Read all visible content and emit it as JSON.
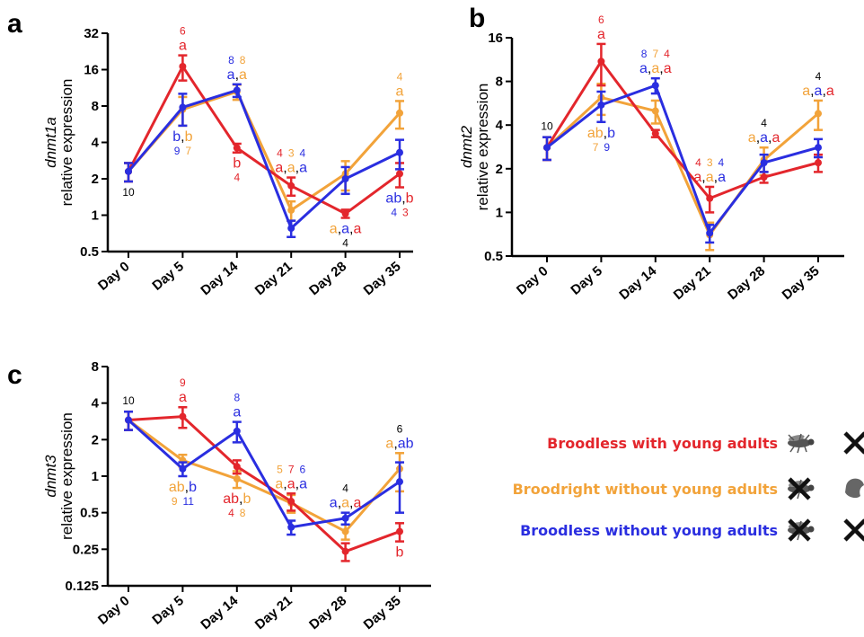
{
  "colors": {
    "red": "#e3262c",
    "orange": "#f2a33a",
    "blue": "#2a2ee0",
    "black": "#000000"
  },
  "legend": {
    "items": [
      {
        "label": "Broodless with young adults",
        "color": "#e3262c",
        "icons": [
          "fly-icon",
          "cross-icon"
        ]
      },
      {
        "label": "Broodright without young adults",
        "color": "#f2a33a",
        "icons": [
          "crossed-fly-icon",
          "pupa-icon"
        ]
      },
      {
        "label": "Broodless without young adults",
        "color": "#2a2ee0",
        "icons": [
          "crossed-fly-icon",
          "cross-icon"
        ]
      }
    ]
  },
  "chart_data": [
    {
      "panel": "a",
      "type": "line",
      "ylabel_gene": "dnmt1a",
      "ylabel": "relative expression",
      "yscale": "log2",
      "ylim": [
        0.5,
        32
      ],
      "yticks": [
        "0.5",
        "1",
        "2",
        "4",
        "8",
        "16",
        "32"
      ],
      "categories": [
        "Day 0",
        "Day 5",
        "Day 14",
        "Day 21",
        "Day 28",
        "Day 35"
      ],
      "series": [
        {
          "color": "#e3262c",
          "values": [
            2.3,
            17,
            3.6,
            1.75,
            1.03,
            2.2
          ],
          "err": [
            0.4,
            4,
            0.3,
            0.3,
            0.08,
            0.5
          ]
        },
        {
          "color": "#f2a33a",
          "values": [
            2.3,
            7.5,
            10.5,
            1.1,
            2.2,
            7.0
          ],
          "err": [
            0.4,
            2,
            1.5,
            0.2,
            0.6,
            1.8
          ]
        },
        {
          "color": "#2a2ee0",
          "values": [
            2.3,
            7.8,
            10.8,
            0.78,
            2.0,
            3.3
          ],
          "err": [
            0.4,
            2.3,
            1.3,
            0.12,
            0.5,
            0.9
          ]
        }
      ],
      "annotations": [
        {
          "x": 0,
          "pos": "below",
          "numbers": [
            {
              "t": "10",
              "c": "black"
            }
          ],
          "letters": []
        },
        {
          "x": 1,
          "pos": "above",
          "numbers": [
            {
              "t": "6",
              "c": "red"
            }
          ],
          "letters": [
            {
              "t": "a",
              "c": "red"
            }
          ]
        },
        {
          "x": 1,
          "pos": "below",
          "numbers": [
            {
              "t": "9",
              "c": "blue"
            },
            {
              "t": "7",
              "c": "orange"
            }
          ],
          "letters": [
            {
              "t": "b",
              "c": "blue"
            },
            {
              "t": ",",
              "c": "black"
            },
            {
              "t": "b",
              "c": "orange"
            }
          ]
        },
        {
          "x": 2,
          "pos": "above",
          "numbers": [
            {
              "t": "8",
              "c": "blue"
            },
            {
              "t": "8",
              "c": "orange"
            }
          ],
          "letters": [
            {
              "t": "a",
              "c": "blue"
            },
            {
              "t": ",",
              "c": "black"
            },
            {
              "t": "a",
              "c": "orange"
            }
          ]
        },
        {
          "x": 2,
          "pos": "below",
          "numbers": [
            {
              "t": "4",
              "c": "red"
            }
          ],
          "letters": [
            {
              "t": "b",
              "c": "red"
            }
          ]
        },
        {
          "x": 3,
          "pos": "above",
          "numbers": [
            {
              "t": "4",
              "c": "red"
            },
            {
              "t": "3",
              "c": "orange"
            },
            {
              "t": "4",
              "c": "blue"
            }
          ],
          "letters": [
            {
              "t": "a",
              "c": "red"
            },
            {
              "t": ",",
              "c": "black"
            },
            {
              "t": "a",
              "c": "orange"
            },
            {
              "t": ",",
              "c": "black"
            },
            {
              "t": "a",
              "c": "blue"
            }
          ]
        },
        {
          "x": 4,
          "pos": "below",
          "numbers": [
            {
              "t": "4",
              "c": "black"
            }
          ],
          "letters": [
            {
              "t": "a",
              "c": "orange"
            },
            {
              "t": ",",
              "c": "black"
            },
            {
              "t": "a",
              "c": "blue"
            },
            {
              "t": ",",
              "c": "black"
            },
            {
              "t": "a",
              "c": "red"
            }
          ]
        },
        {
          "x": 5,
          "pos": "above",
          "numbers": [
            {
              "t": "4",
              "c": "orange"
            }
          ],
          "letters": [
            {
              "t": "a",
              "c": "orange"
            }
          ]
        },
        {
          "x": 5,
          "pos": "below",
          "numbers": [
            {
              "t": "4",
              "c": "blue"
            },
            {
              "t": "3",
              "c": "red"
            }
          ],
          "letters": [
            {
              "t": "ab",
              "c": "blue"
            },
            {
              "t": ",",
              "c": "black"
            },
            {
              "t": "b",
              "c": "red"
            }
          ]
        }
      ]
    },
    {
      "panel": "b",
      "type": "line",
      "ylabel_gene": "dnmt2",
      "ylabel": "relative expression",
      "yscale": "log2",
      "ylim": [
        0.5,
        16
      ],
      "yticks": [
        "0.5",
        "1",
        "2",
        "4",
        "8",
        "16"
      ],
      "categories": [
        "Day 0",
        "Day 5",
        "Day 14",
        "Day 21",
        "Day 28",
        "Day 35"
      ],
      "series": [
        {
          "color": "#e3262c",
          "values": [
            2.8,
            11,
            3.5,
            1.25,
            1.75,
            2.2
          ],
          "err": [
            0.5,
            3.5,
            0.2,
            0.25,
            0.15,
            0.3
          ]
        },
        {
          "color": "#f2a33a",
          "values": [
            2.8,
            6.2,
            5.0,
            0.7,
            2.3,
            4.8
          ],
          "err": [
            0.5,
            1.5,
            0.9,
            0.15,
            0.5,
            1.1
          ]
        },
        {
          "color": "#2a2ee0",
          "values": [
            2.8,
            5.5,
            7.5,
            0.72,
            2.2,
            2.8
          ],
          "err": [
            0.5,
            1.3,
            0.9,
            0.1,
            0.3,
            0.4
          ]
        }
      ],
      "annotations": [
        {
          "x": 0,
          "pos": "above",
          "numbers": [
            {
              "t": "10",
              "c": "black"
            }
          ],
          "letters": []
        },
        {
          "x": 1,
          "pos": "above",
          "numbers": [
            {
              "t": "6",
              "c": "red"
            }
          ],
          "letters": [
            {
              "t": "a",
              "c": "red"
            }
          ]
        },
        {
          "x": 1,
          "pos": "below",
          "numbers": [
            {
              "t": "7",
              "c": "orange"
            },
            {
              "t": "9",
              "c": "blue"
            }
          ],
          "letters": [
            {
              "t": "ab",
              "c": "orange"
            },
            {
              "t": ",",
              "c": "black"
            },
            {
              "t": "b",
              "c": "blue"
            }
          ]
        },
        {
          "x": 2,
          "pos": "above",
          "numbers": [
            {
              "t": "8",
              "c": "blue"
            },
            {
              "t": "7",
              "c": "orange"
            },
            {
              "t": "4",
              "c": "red"
            }
          ],
          "letters": [
            {
              "t": "a",
              "c": "blue"
            },
            {
              "t": ",",
              "c": "black"
            },
            {
              "t": "a",
              "c": "orange"
            },
            {
              "t": ",",
              "c": "black"
            },
            {
              "t": "a",
              "c": "red"
            }
          ]
        },
        {
          "x": 3,
          "pos": "above",
          "numbers": [
            {
              "t": "4",
              "c": "red"
            },
            {
              "t": "3",
              "c": "orange"
            },
            {
              "t": "4",
              "c": "blue"
            }
          ],
          "letters": [
            {
              "t": "a",
              "c": "red"
            },
            {
              "t": ",",
              "c": "black"
            },
            {
              "t": "a",
              "c": "orange"
            },
            {
              "t": ",",
              "c": "black"
            },
            {
              "t": "a",
              "c": "blue"
            }
          ]
        },
        {
          "x": 4,
          "pos": "above",
          "numbers": [
            {
              "t": "4",
              "c": "black"
            }
          ],
          "letters": [
            {
              "t": "a",
              "c": "orange"
            },
            {
              "t": ",",
              "c": "black"
            },
            {
              "t": "a",
              "c": "blue"
            },
            {
              "t": ",",
              "c": "black"
            },
            {
              "t": "a",
              "c": "red"
            }
          ]
        },
        {
          "x": 5,
          "pos": "above",
          "numbers": [
            {
              "t": "4",
              "c": "black"
            }
          ],
          "letters": [
            {
              "t": "a",
              "c": "orange"
            },
            {
              "t": ",",
              "c": "black"
            },
            {
              "t": "a",
              "c": "blue"
            },
            {
              "t": ",",
              "c": "black"
            },
            {
              "t": "a",
              "c": "red"
            }
          ]
        }
      ]
    },
    {
      "panel": "c",
      "type": "line",
      "ylabel_gene": "dnmt3",
      "ylabel": "relative expression",
      "yscale": "log2",
      "ylim": [
        0.125,
        8
      ],
      "yticks": [
        "0.125",
        "0.25",
        "0.5",
        "1",
        "2",
        "4",
        "8"
      ],
      "categories": [
        "Day 0",
        "Day 5",
        "Day 14",
        "Day 21",
        "Day 28",
        "Day 35"
      ],
      "series": [
        {
          "color": "#e3262c",
          "values": [
            2.9,
            3.1,
            1.2,
            0.62,
            0.24,
            0.35
          ],
          "err": [
            0.5,
            0.6,
            0.15,
            0.1,
            0.04,
            0.06
          ]
        },
        {
          "color": "#f2a33a",
          "values": [
            2.9,
            1.35,
            0.95,
            0.6,
            0.35,
            1.15
          ],
          "err": [
            0.5,
            0.15,
            0.15,
            0.1,
            0.05,
            0.4
          ]
        },
        {
          "color": "#2a2ee0",
          "values": [
            2.9,
            1.15,
            2.35,
            0.38,
            0.45,
            0.9
          ],
          "err": [
            0.5,
            0.15,
            0.45,
            0.05,
            0.05,
            0.4
          ]
        }
      ],
      "annotations": [
        {
          "x": 0,
          "pos": "above",
          "numbers": [
            {
              "t": "10",
              "c": "black"
            }
          ],
          "letters": []
        },
        {
          "x": 1,
          "pos": "above",
          "numbers": [
            {
              "t": "9",
              "c": "red"
            }
          ],
          "letters": [
            {
              "t": "a",
              "c": "red"
            }
          ]
        },
        {
          "x": 1,
          "pos": "below",
          "numbers": [
            {
              "t": "9",
              "c": "orange"
            },
            {
              "t": "11",
              "c": "blue"
            }
          ],
          "letters": [
            {
              "t": "ab",
              "c": "orange"
            },
            {
              "t": ",",
              "c": "black"
            },
            {
              "t": "b",
              "c": "blue"
            }
          ]
        },
        {
          "x": 2,
          "pos": "above",
          "numbers": [
            {
              "t": "8",
              "c": "blue"
            }
          ],
          "letters": [
            {
              "t": "a",
              "c": "blue"
            }
          ]
        },
        {
          "x": 2,
          "pos": "below",
          "numbers": [
            {
              "t": "4",
              "c": "red"
            },
            {
              "t": "8",
              "c": "orange"
            }
          ],
          "letters": [
            {
              "t": "ab",
              "c": "red"
            },
            {
              "t": ",",
              "c": "black"
            },
            {
              "t": "b",
              "c": "orange"
            }
          ]
        },
        {
          "x": 3,
          "pos": "above",
          "numbers": [
            {
              "t": "5",
              "c": "orange"
            },
            {
              "t": "7",
              "c": "red"
            },
            {
              "t": "6",
              "c": "blue"
            }
          ],
          "letters": [
            {
              "t": "a",
              "c": "orange"
            },
            {
              "t": ",",
              "c": "black"
            },
            {
              "t": "a",
              "c": "red"
            },
            {
              "t": ",",
              "c": "black"
            },
            {
              "t": "a",
              "c": "blue"
            }
          ]
        },
        {
          "x": 4,
          "pos": "above",
          "numbers": [
            {
              "t": "4",
              "c": "black"
            }
          ],
          "letters": [
            {
              "t": "a",
              "c": "blue"
            },
            {
              "t": ",",
              "c": "black"
            },
            {
              "t": "a",
              "c": "orange"
            },
            {
              "t": ",",
              "c": "black"
            },
            {
              "t": "a",
              "c": "red"
            }
          ]
        },
        {
          "x": 5,
          "pos": "above",
          "numbers": [
            {
              "t": "6",
              "c": "black"
            }
          ],
          "letters": [
            {
              "t": "a",
              "c": "orange"
            },
            {
              "t": ",",
              "c": "black"
            },
            {
              "t": "ab",
              "c": "blue"
            }
          ]
        },
        {
          "x": 5,
          "pos": "below",
          "numbers": [],
          "letters": [
            {
              "t": "b",
              "c": "red"
            }
          ]
        }
      ]
    }
  ]
}
